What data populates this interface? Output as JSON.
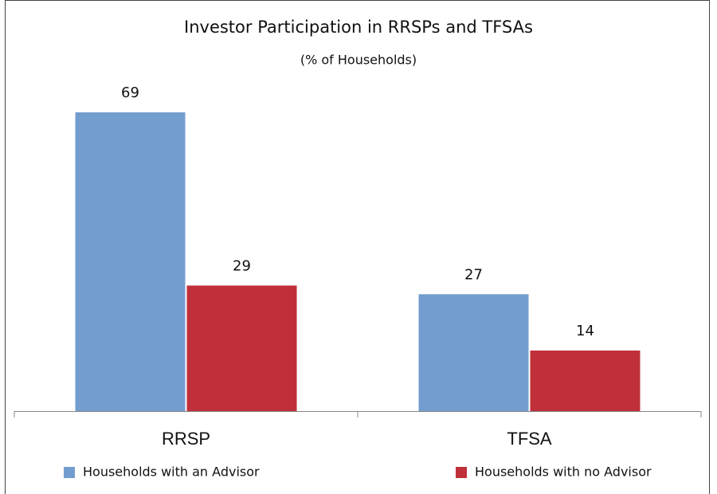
{
  "chart_data": {
    "type": "bar",
    "title": "Investor Participation in RRSPs and TFSAs",
    "subtitle": "(% of Households)",
    "categories": [
      "RRSP",
      "TFSA"
    ],
    "series": [
      {
        "name": "Households with an Advisor",
        "color": "#739dcf",
        "values": [
          69,
          27
        ]
      },
      {
        "name": "Households with no Advisor",
        "color": "#c0303a",
        "values": [
          29,
          14
        ]
      }
    ],
    "legend": "bottom"
  }
}
